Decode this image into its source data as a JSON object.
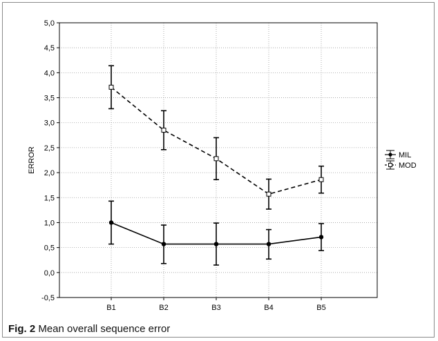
{
  "caption": {
    "fig_label": "Fig. 2",
    "text": "Mean overall sequence error"
  },
  "chart_data": {
    "type": "line",
    "categories": [
      "B1",
      "B2",
      "B3",
      "B4",
      "B5"
    ],
    "ylabel": "ERROR",
    "xlabel": "",
    "ylim": [
      -0.5,
      5.0
    ],
    "ytick_step": 0.5,
    "ytick_labels": [
      "-0,5",
      "0,0",
      "0,5",
      "1,0",
      "1,5",
      "2,0",
      "2,5",
      "3,0",
      "3,5",
      "4,0",
      "4,5",
      "5,0"
    ],
    "grid": true,
    "legend_position": "right",
    "series": [
      {
        "name": "MIL",
        "style": "solid",
        "marker": "filled-circle",
        "values": [
          1.0,
          0.57,
          0.57,
          0.57,
          0.71
        ],
        "lower": [
          0.57,
          0.18,
          0.15,
          0.27,
          0.44
        ],
        "upper": [
          1.43,
          0.95,
          0.99,
          0.86,
          0.98
        ]
      },
      {
        "name": "MOD",
        "style": "dashed",
        "marker": "open-square",
        "values": [
          3.71,
          2.85,
          2.28,
          1.57,
          1.86
        ],
        "lower": [
          3.28,
          2.46,
          1.86,
          1.27,
          1.59
        ],
        "upper": [
          4.14,
          3.24,
          2.7,
          1.87,
          2.13
        ]
      }
    ]
  }
}
